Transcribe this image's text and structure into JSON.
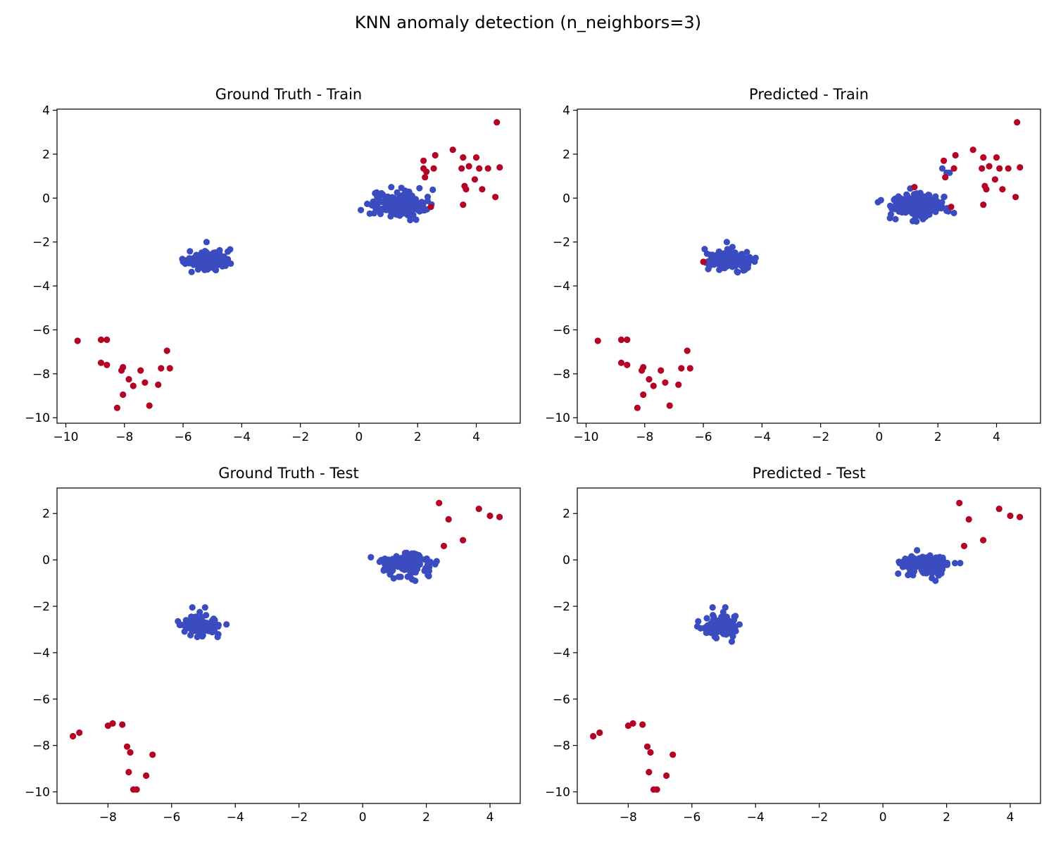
{
  "figure": {
    "title": "KNN anomaly detection (n_neighbors=3)"
  },
  "colors": {
    "inlier": "#3a4cc0",
    "outlier": "#b40426"
  },
  "chart_data": [
    {
      "type": "scatter",
      "title": "Ground Truth - Train",
      "xlim": [
        -10.3,
        5.5
      ],
      "ylim": [
        -10.25,
        4.05
      ],
      "xticks": [
        -10,
        -8,
        -6,
        -4,
        -2,
        0,
        2,
        4
      ],
      "yticks": [
        -10,
        -8,
        -6,
        -4,
        -2,
        0,
        2,
        4
      ],
      "tick_labels_x": [
        "−10",
        "−8",
        "−6",
        "−4",
        "−2",
        "0",
        "2",
        "4"
      ],
      "tick_labels_y": [
        "−10",
        "−8",
        "−6",
        "−4",
        "−2",
        "0",
        "2",
        "4"
      ],
      "clusters": [
        {
          "label": "inlier",
          "center": [
            1.3,
            -0.3
          ],
          "spread": [
            0.45,
            0.28
          ],
          "n": 170
        },
        {
          "label": "inlier",
          "center": [
            -5.1,
            -2.85
          ],
          "spread": [
            0.35,
            0.22
          ],
          "n": 160
        }
      ],
      "points": [
        {
          "x": -6.0,
          "y": -2.9,
          "label": "inlier"
        },
        {
          "x": -5.2,
          "y": -2.0,
          "label": "inlier"
        },
        {
          "x": 1.1,
          "y": 0.5,
          "label": "inlier"
        },
        {
          "x": 2.2,
          "y": 1.7,
          "label": "outlier"
        },
        {
          "x": 2.6,
          "y": 1.95,
          "label": "outlier"
        },
        {
          "x": 3.2,
          "y": 2.2,
          "label": "outlier"
        },
        {
          "x": 2.2,
          "y": 1.35,
          "label": "outlier"
        },
        {
          "x": 2.3,
          "y": 1.2,
          "label": "outlier"
        },
        {
          "x": 2.25,
          "y": 0.95,
          "label": "outlier"
        },
        {
          "x": 2.55,
          "y": 1.35,
          "label": "outlier"
        },
        {
          "x": 2.45,
          "y": -0.4,
          "label": "outlier"
        },
        {
          "x": 3.5,
          "y": 1.35,
          "label": "outlier"
        },
        {
          "x": 3.55,
          "y": 1.85,
          "label": "outlier"
        },
        {
          "x": 3.6,
          "y": 0.55,
          "label": "outlier"
        },
        {
          "x": 3.65,
          "y": 0.4,
          "label": "outlier"
        },
        {
          "x": 3.55,
          "y": -0.3,
          "label": "outlier"
        },
        {
          "x": 3.75,
          "y": 1.45,
          "label": "outlier"
        },
        {
          "x": 3.95,
          "y": 0.85,
          "label": "outlier"
        },
        {
          "x": 4.0,
          "y": 1.85,
          "label": "outlier"
        },
        {
          "x": 4.1,
          "y": 1.35,
          "label": "outlier"
        },
        {
          "x": 4.2,
          "y": 0.4,
          "label": "outlier"
        },
        {
          "x": 4.4,
          "y": 1.35,
          "label": "outlier"
        },
        {
          "x": 4.65,
          "y": 0.05,
          "label": "outlier"
        },
        {
          "x": 4.8,
          "y": 1.4,
          "label": "outlier"
        },
        {
          "x": 4.7,
          "y": 3.45,
          "label": "outlier"
        },
        {
          "x": -9.6,
          "y": -6.5,
          "label": "outlier"
        },
        {
          "x": -8.8,
          "y": -6.45,
          "label": "outlier"
        },
        {
          "x": -8.6,
          "y": -6.45,
          "label": "outlier"
        },
        {
          "x": -8.8,
          "y": -7.5,
          "label": "outlier"
        },
        {
          "x": -8.6,
          "y": -7.6,
          "label": "outlier"
        },
        {
          "x": -8.05,
          "y": -7.7,
          "label": "outlier"
        },
        {
          "x": -8.1,
          "y": -7.85,
          "label": "outlier"
        },
        {
          "x": -7.85,
          "y": -8.25,
          "label": "outlier"
        },
        {
          "x": -7.7,
          "y": -8.55,
          "label": "outlier"
        },
        {
          "x": -7.45,
          "y": -7.85,
          "label": "outlier"
        },
        {
          "x": -7.3,
          "y": -8.4,
          "label": "outlier"
        },
        {
          "x": -8.05,
          "y": -8.95,
          "label": "outlier"
        },
        {
          "x": -8.25,
          "y": -9.55,
          "label": "outlier"
        },
        {
          "x": -7.15,
          "y": -9.45,
          "label": "outlier"
        },
        {
          "x": -6.85,
          "y": -8.5,
          "label": "outlier"
        },
        {
          "x": -6.75,
          "y": -7.75,
          "label": "outlier"
        },
        {
          "x": -6.55,
          "y": -6.95,
          "label": "outlier"
        },
        {
          "x": -6.45,
          "y": -7.75,
          "label": "outlier"
        }
      ]
    },
    {
      "type": "scatter",
      "title": "Predicted - Train",
      "xlim": [
        -10.3,
        5.5
      ],
      "ylim": [
        -10.25,
        4.05
      ],
      "xticks": [
        -10,
        -8,
        -6,
        -4,
        -2,
        0,
        2,
        4
      ],
      "yticks": [
        -10,
        -8,
        -6,
        -4,
        -2,
        0,
        2,
        4
      ],
      "tick_labels_x": [
        "−10",
        "−8",
        "−6",
        "−4",
        "−2",
        "0",
        "2",
        "4"
      ],
      "tick_labels_y": [
        "−10",
        "−8",
        "−6",
        "−4",
        "−2",
        "0",
        "2",
        "4"
      ],
      "clusters": [
        {
          "label": "inlier",
          "center": [
            1.3,
            -0.3
          ],
          "spread": [
            0.45,
            0.28
          ],
          "n": 170
        },
        {
          "label": "inlier",
          "center": [
            -5.1,
            -2.85
          ],
          "spread": [
            0.35,
            0.22
          ],
          "n": 160
        }
      ],
      "points": [
        {
          "x": -5.2,
          "y": -2.0,
          "label": "inlier"
        },
        {
          "x": 2.15,
          "y": 1.35,
          "label": "inlier"
        },
        {
          "x": 2.3,
          "y": 1.15,
          "label": "inlier"
        },
        {
          "x": 2.4,
          "y": 1.15,
          "label": "inlier"
        },
        {
          "x": -6.0,
          "y": -2.9,
          "label": "outlier"
        },
        {
          "x": 1.2,
          "y": 0.5,
          "label": "outlier"
        },
        {
          "x": 2.2,
          "y": 1.7,
          "label": "outlier"
        },
        {
          "x": 2.6,
          "y": 1.95,
          "label": "outlier"
        },
        {
          "x": 3.2,
          "y": 2.2,
          "label": "outlier"
        },
        {
          "x": 2.25,
          "y": 0.95,
          "label": "outlier"
        },
        {
          "x": 2.55,
          "y": 1.35,
          "label": "outlier"
        },
        {
          "x": 2.45,
          "y": -0.4,
          "label": "outlier"
        },
        {
          "x": 3.5,
          "y": 1.35,
          "label": "outlier"
        },
        {
          "x": 3.55,
          "y": 1.85,
          "label": "outlier"
        },
        {
          "x": 3.6,
          "y": 0.55,
          "label": "outlier"
        },
        {
          "x": 3.65,
          "y": 0.4,
          "label": "outlier"
        },
        {
          "x": 3.55,
          "y": -0.3,
          "label": "outlier"
        },
        {
          "x": 3.75,
          "y": 1.45,
          "label": "outlier"
        },
        {
          "x": 3.95,
          "y": 0.85,
          "label": "outlier"
        },
        {
          "x": 4.0,
          "y": 1.85,
          "label": "outlier"
        },
        {
          "x": 4.1,
          "y": 1.35,
          "label": "outlier"
        },
        {
          "x": 4.2,
          "y": 0.4,
          "label": "outlier"
        },
        {
          "x": 4.4,
          "y": 1.35,
          "label": "outlier"
        },
        {
          "x": 4.65,
          "y": 0.05,
          "label": "outlier"
        },
        {
          "x": 4.8,
          "y": 1.4,
          "label": "outlier"
        },
        {
          "x": 4.7,
          "y": 3.45,
          "label": "outlier"
        },
        {
          "x": -9.6,
          "y": -6.5,
          "label": "outlier"
        },
        {
          "x": -8.8,
          "y": -6.45,
          "label": "outlier"
        },
        {
          "x": -8.6,
          "y": -6.45,
          "label": "outlier"
        },
        {
          "x": -8.8,
          "y": -7.5,
          "label": "outlier"
        },
        {
          "x": -8.6,
          "y": -7.6,
          "label": "outlier"
        },
        {
          "x": -8.05,
          "y": -7.7,
          "label": "outlier"
        },
        {
          "x": -8.1,
          "y": -7.85,
          "label": "outlier"
        },
        {
          "x": -7.85,
          "y": -8.25,
          "label": "outlier"
        },
        {
          "x": -7.7,
          "y": -8.55,
          "label": "outlier"
        },
        {
          "x": -7.45,
          "y": -7.85,
          "label": "outlier"
        },
        {
          "x": -7.3,
          "y": -8.4,
          "label": "outlier"
        },
        {
          "x": -8.05,
          "y": -8.95,
          "label": "outlier"
        },
        {
          "x": -8.25,
          "y": -9.55,
          "label": "outlier"
        },
        {
          "x": -7.15,
          "y": -9.45,
          "label": "outlier"
        },
        {
          "x": -6.85,
          "y": -8.5,
          "label": "outlier"
        },
        {
          "x": -6.75,
          "y": -7.75,
          "label": "outlier"
        },
        {
          "x": -6.55,
          "y": -6.95,
          "label": "outlier"
        },
        {
          "x": -6.45,
          "y": -7.75,
          "label": "outlier"
        }
      ]
    },
    {
      "type": "scatter",
      "title": "Ground Truth - Test",
      "xlim": [
        -9.6,
        4.95
      ],
      "ylim": [
        -10.5,
        3.1
      ],
      "xticks": [
        -8,
        -6,
        -4,
        -2,
        0,
        2,
        4
      ],
      "yticks": [
        -10,
        -8,
        -6,
        -4,
        -2,
        0,
        2
      ],
      "tick_labels_x": [
        "−8",
        "−6",
        "−4",
        "−2",
        "0",
        "2",
        "4"
      ],
      "tick_labels_y": [
        "−10",
        "−8",
        "−6",
        "−4",
        "−2",
        "0",
        "2"
      ],
      "clusters": [
        {
          "label": "inlier",
          "center": [
            1.35,
            -0.2
          ],
          "spread": [
            0.4,
            0.25
          ],
          "n": 120
        },
        {
          "label": "inlier",
          "center": [
            -5.1,
            -2.85
          ],
          "spread": [
            0.3,
            0.22
          ],
          "n": 110
        }
      ],
      "points": [
        {
          "x": -5.8,
          "y": -2.65,
          "label": "inlier"
        },
        {
          "x": -5.35,
          "y": -2.05,
          "label": "inlier"
        },
        {
          "x": -4.95,
          "y": -2.05,
          "label": "inlier"
        },
        {
          "x": 0.7,
          "y": 0.05,
          "label": "inlier"
        },
        {
          "x": 1.65,
          "y": -0.9,
          "label": "inlier"
        },
        {
          "x": 2.4,
          "y": 2.45,
          "label": "outlier"
        },
        {
          "x": 2.7,
          "y": 1.75,
          "label": "outlier"
        },
        {
          "x": 2.55,
          "y": 0.6,
          "label": "outlier"
        },
        {
          "x": 3.15,
          "y": 0.85,
          "label": "outlier"
        },
        {
          "x": 3.65,
          "y": 2.2,
          "label": "outlier"
        },
        {
          "x": 4.0,
          "y": 1.9,
          "label": "outlier"
        },
        {
          "x": 4.3,
          "y": 1.85,
          "label": "outlier"
        },
        {
          "x": -9.1,
          "y": -7.6,
          "label": "outlier"
        },
        {
          "x": -8.9,
          "y": -7.45,
          "label": "outlier"
        },
        {
          "x": -8.0,
          "y": -7.15,
          "label": "outlier"
        },
        {
          "x": -7.85,
          "y": -7.05,
          "label": "outlier"
        },
        {
          "x": -7.55,
          "y": -7.1,
          "label": "outlier"
        },
        {
          "x": -7.4,
          "y": -8.05,
          "label": "outlier"
        },
        {
          "x": -7.3,
          "y": -8.3,
          "label": "outlier"
        },
        {
          "x": -6.6,
          "y": -8.4,
          "label": "outlier"
        },
        {
          "x": -7.35,
          "y": -9.15,
          "label": "outlier"
        },
        {
          "x": -6.8,
          "y": -9.3,
          "label": "outlier"
        },
        {
          "x": -7.2,
          "y": -9.9,
          "label": "outlier"
        },
        {
          "x": -7.1,
          "y": -9.9,
          "label": "outlier"
        }
      ]
    },
    {
      "type": "scatter",
      "title": "Predicted - Test",
      "xlim": [
        -9.6,
        4.95
      ],
      "ylim": [
        -10.5,
        3.1
      ],
      "xticks": [
        -8,
        -6,
        -4,
        -2,
        0,
        2,
        4
      ],
      "yticks": [
        -10,
        -8,
        -6,
        -4,
        -2,
        0,
        2
      ],
      "tick_labels_x": [
        "−8",
        "−6",
        "−4",
        "−2",
        "0",
        "2",
        "4"
      ],
      "tick_labels_y": [
        "−10",
        "−8",
        "−6",
        "−4",
        "−2",
        "0",
        "2"
      ],
      "clusters": [
        {
          "label": "inlier",
          "center": [
            1.35,
            -0.2
          ],
          "spread": [
            0.4,
            0.25
          ],
          "n": 120
        },
        {
          "label": "inlier",
          "center": [
            -5.1,
            -2.85
          ],
          "spread": [
            0.3,
            0.22
          ],
          "n": 110
        }
      ],
      "points": [
        {
          "x": -5.8,
          "y": -2.65,
          "label": "inlier"
        },
        {
          "x": -5.35,
          "y": -2.05,
          "label": "inlier"
        },
        {
          "x": -4.95,
          "y": -2.05,
          "label": "inlier"
        },
        {
          "x": 0.7,
          "y": 0.05,
          "label": "inlier"
        },
        {
          "x": 1.65,
          "y": -0.9,
          "label": "inlier"
        },
        {
          "x": 2.4,
          "y": 2.45,
          "label": "outlier"
        },
        {
          "x": 2.7,
          "y": 1.75,
          "label": "outlier"
        },
        {
          "x": 2.55,
          "y": 0.6,
          "label": "outlier"
        },
        {
          "x": 3.15,
          "y": 0.85,
          "label": "outlier"
        },
        {
          "x": 3.65,
          "y": 2.2,
          "label": "outlier"
        },
        {
          "x": 4.0,
          "y": 1.9,
          "label": "outlier"
        },
        {
          "x": 4.3,
          "y": 1.85,
          "label": "outlier"
        },
        {
          "x": -9.1,
          "y": -7.6,
          "label": "outlier"
        },
        {
          "x": -8.9,
          "y": -7.45,
          "label": "outlier"
        },
        {
          "x": -8.0,
          "y": -7.15,
          "label": "outlier"
        },
        {
          "x": -7.85,
          "y": -7.05,
          "label": "outlier"
        },
        {
          "x": -7.55,
          "y": -7.1,
          "label": "outlier"
        },
        {
          "x": -7.4,
          "y": -8.05,
          "label": "outlier"
        },
        {
          "x": -7.3,
          "y": -8.3,
          "label": "outlier"
        },
        {
          "x": -6.6,
          "y": -8.4,
          "label": "outlier"
        },
        {
          "x": -7.35,
          "y": -9.15,
          "label": "outlier"
        },
        {
          "x": -6.8,
          "y": -9.3,
          "label": "outlier"
        },
        {
          "x": -7.2,
          "y": -9.9,
          "label": "outlier"
        },
        {
          "x": -7.1,
          "y": -9.9,
          "label": "outlier"
        }
      ]
    }
  ]
}
